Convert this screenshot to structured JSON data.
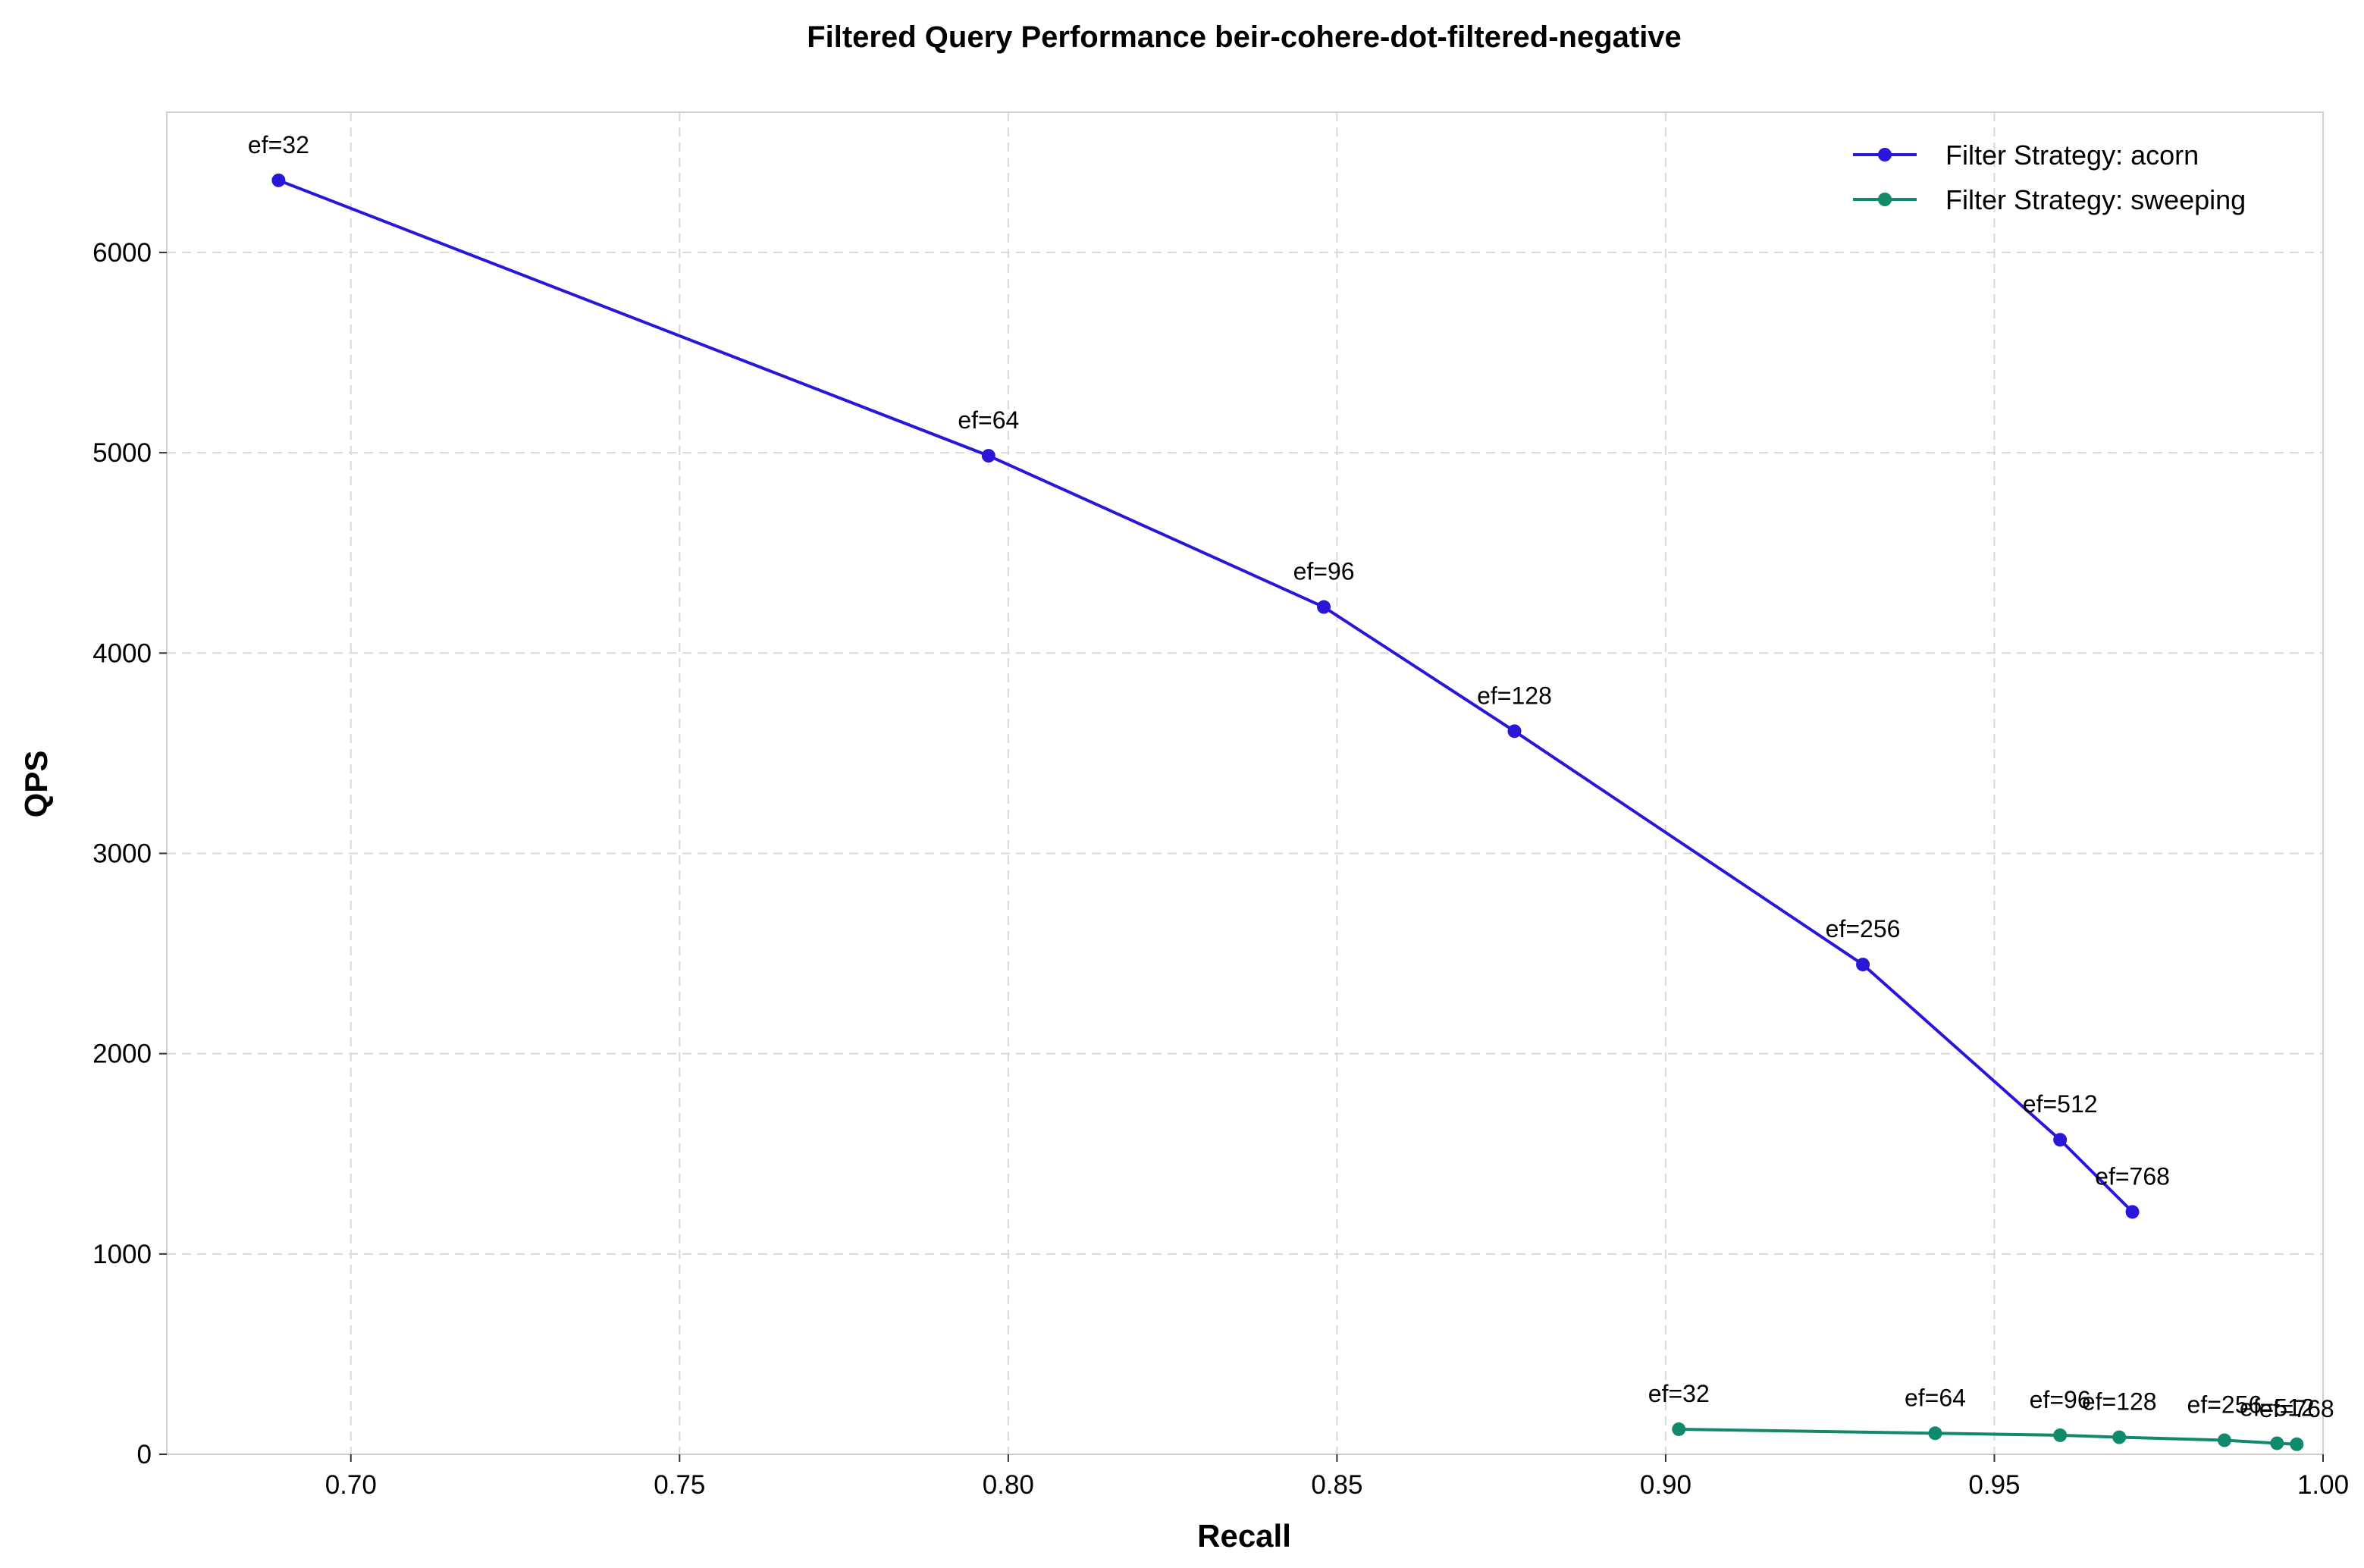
{
  "chart_data": {
    "type": "line",
    "title": "Filtered Query Performance beir-cohere-dot-filtered-negative",
    "xlabel": "Recall",
    "ylabel": "QPS",
    "xlim": [
      0.672,
      1.0
    ],
    "ylim": [
      0,
      6700
    ],
    "xticks": [
      0.7,
      0.75,
      0.8,
      0.85,
      0.9,
      0.95,
      1.0
    ],
    "xtick_labels": [
      "0.70",
      "0.75",
      "0.80",
      "0.85",
      "0.90",
      "0.95",
      "1.00"
    ],
    "yticks": [
      0,
      1000,
      2000,
      3000,
      4000,
      5000,
      6000
    ],
    "ytick_labels": [
      "0",
      "1000",
      "2000",
      "3000",
      "4000",
      "5000",
      "6000"
    ],
    "grid": true,
    "legend_position": "top-right",
    "series": [
      {
        "name": "Filter Strategy: acorn",
        "color": "#2a16d9",
        "marker": "circle",
        "points": [
          {
            "x": 0.689,
            "y": 6360,
            "label": "ef=32"
          },
          {
            "x": 0.797,
            "y": 4985,
            "label": "ef=64"
          },
          {
            "x": 0.848,
            "y": 4230,
            "label": "ef=96"
          },
          {
            "x": 0.877,
            "y": 3610,
            "label": "ef=128"
          },
          {
            "x": 0.93,
            "y": 2445,
            "label": "ef=256"
          },
          {
            "x": 0.96,
            "y": 1570,
            "label": "ef=512"
          },
          {
            "x": 0.971,
            "y": 1210,
            "label": "ef=768"
          }
        ]
      },
      {
        "name": "Filter Strategy: sweeping",
        "color": "#11896b",
        "marker": "circle",
        "points": [
          {
            "x": 0.902,
            "y": 125,
            "label": "ef=32"
          },
          {
            "x": 0.941,
            "y": 105,
            "label": "ef=64"
          },
          {
            "x": 0.96,
            "y": 95,
            "label": "ef=96"
          },
          {
            "x": 0.969,
            "y": 85,
            "label": "ef=128"
          },
          {
            "x": 0.985,
            "y": 70,
            "label": "ef=256"
          },
          {
            "x": 0.993,
            "y": 55,
            "label": "ef=512"
          },
          {
            "x": 0.996,
            "y": 50,
            "label": "ef=768"
          }
        ]
      }
    ]
  }
}
